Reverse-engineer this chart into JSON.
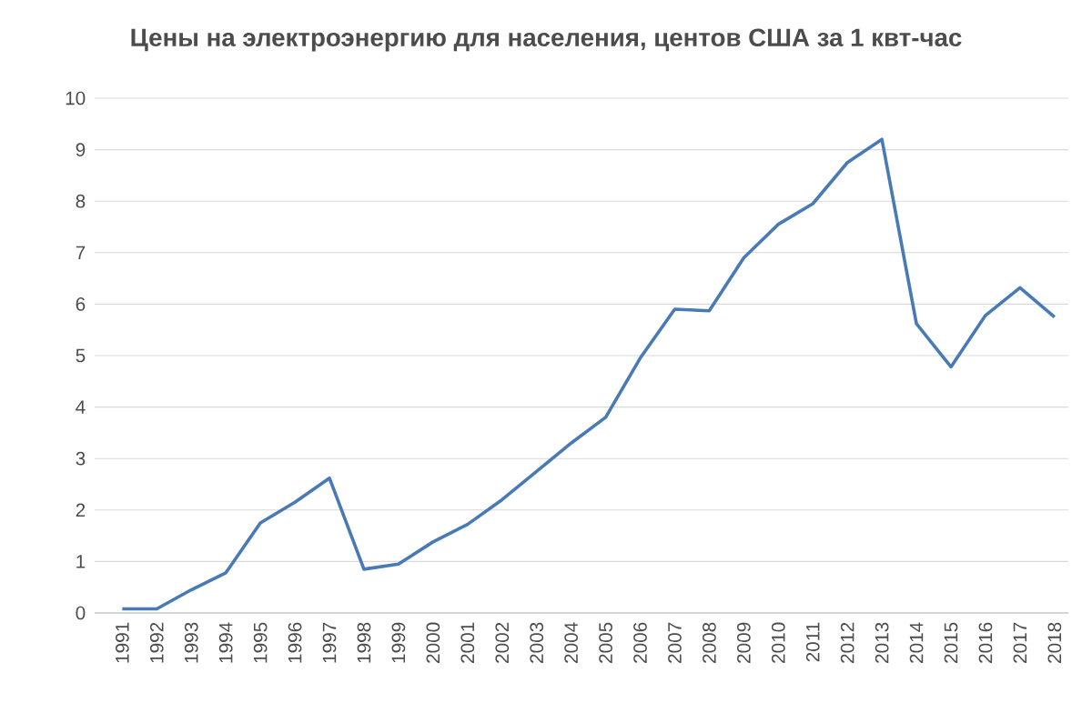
{
  "chart_data": {
    "type": "line",
    "title": "Цены на электроэнергию для населения, центов США за 1 квт-час",
    "categories": [
      "1991",
      "1992",
      "1993",
      "1994",
      "1995",
      "1996",
      "1997",
      "1998",
      "1999",
      "2000",
      "2001",
      "2002",
      "2003",
      "2004",
      "2005",
      "2006",
      "2007",
      "2008",
      "2009",
      "2010",
      "2011",
      "2012",
      "2013",
      "2014",
      "2015",
      "2016",
      "2017",
      "2018"
    ],
    "values": [
      0.08,
      0.08,
      0.45,
      0.78,
      1.75,
      2.15,
      2.62,
      0.85,
      0.95,
      1.38,
      1.72,
      2.2,
      2.75,
      3.3,
      3.8,
      4.95,
      5.9,
      5.87,
      6.9,
      7.55,
      7.95,
      8.75,
      9.2,
      5.62,
      4.78,
      5.78,
      6.32,
      5.75
    ],
    "color": "#4a7ab5",
    "ylim": [
      0,
      10
    ],
    "yticks": [
      0,
      1,
      2,
      3,
      4,
      5,
      6,
      7,
      8,
      9,
      10
    ],
    "grid": "y",
    "marker": "none",
    "line_style": "solid"
  }
}
